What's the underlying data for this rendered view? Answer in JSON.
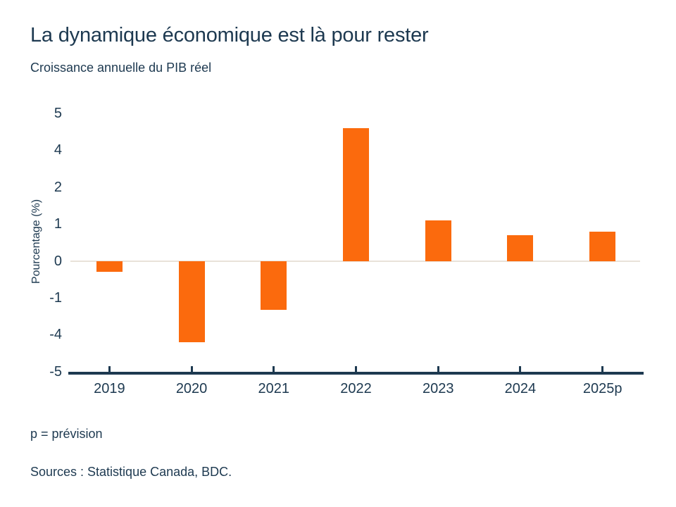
{
  "header": {
    "title": "La dynamique économique est là pour rester",
    "subtitle": "Croissance annuelle du PIB réel"
  },
  "chart_data": {
    "type": "bar",
    "title": "La dynamique économique est là pour rester",
    "subtitle": "Croissance annuelle du PIB réel",
    "categories": [
      "2019",
      "2020",
      "2021",
      "2022",
      "2023",
      "2024",
      "2025p"
    ],
    "values": [
      -0.3,
      -4.2,
      -2.0,
      4.6,
      1.1,
      0.7,
      0.8
    ],
    "xlabel": "",
    "ylabel": "Pourcentage (%)",
    "y_ticks": [
      5,
      4,
      2,
      1,
      0,
      -1,
      -4,
      -5
    ],
    "y_axis_note": "tick labels are evenly spaced as shown (non-linear sequence)",
    "grid": false,
    "legend": false,
    "zero_line": true,
    "bar_color": "#fb6a0d"
  },
  "footer": {
    "note": "p = prévision",
    "sources": "Sources : Statistique Canada, BDC."
  },
  "colors": {
    "background": "#ffffff",
    "text": "#1d3950",
    "bar": "#fb6a0d",
    "axis": "#1d3950",
    "zero_line": "#e9e2d9"
  }
}
